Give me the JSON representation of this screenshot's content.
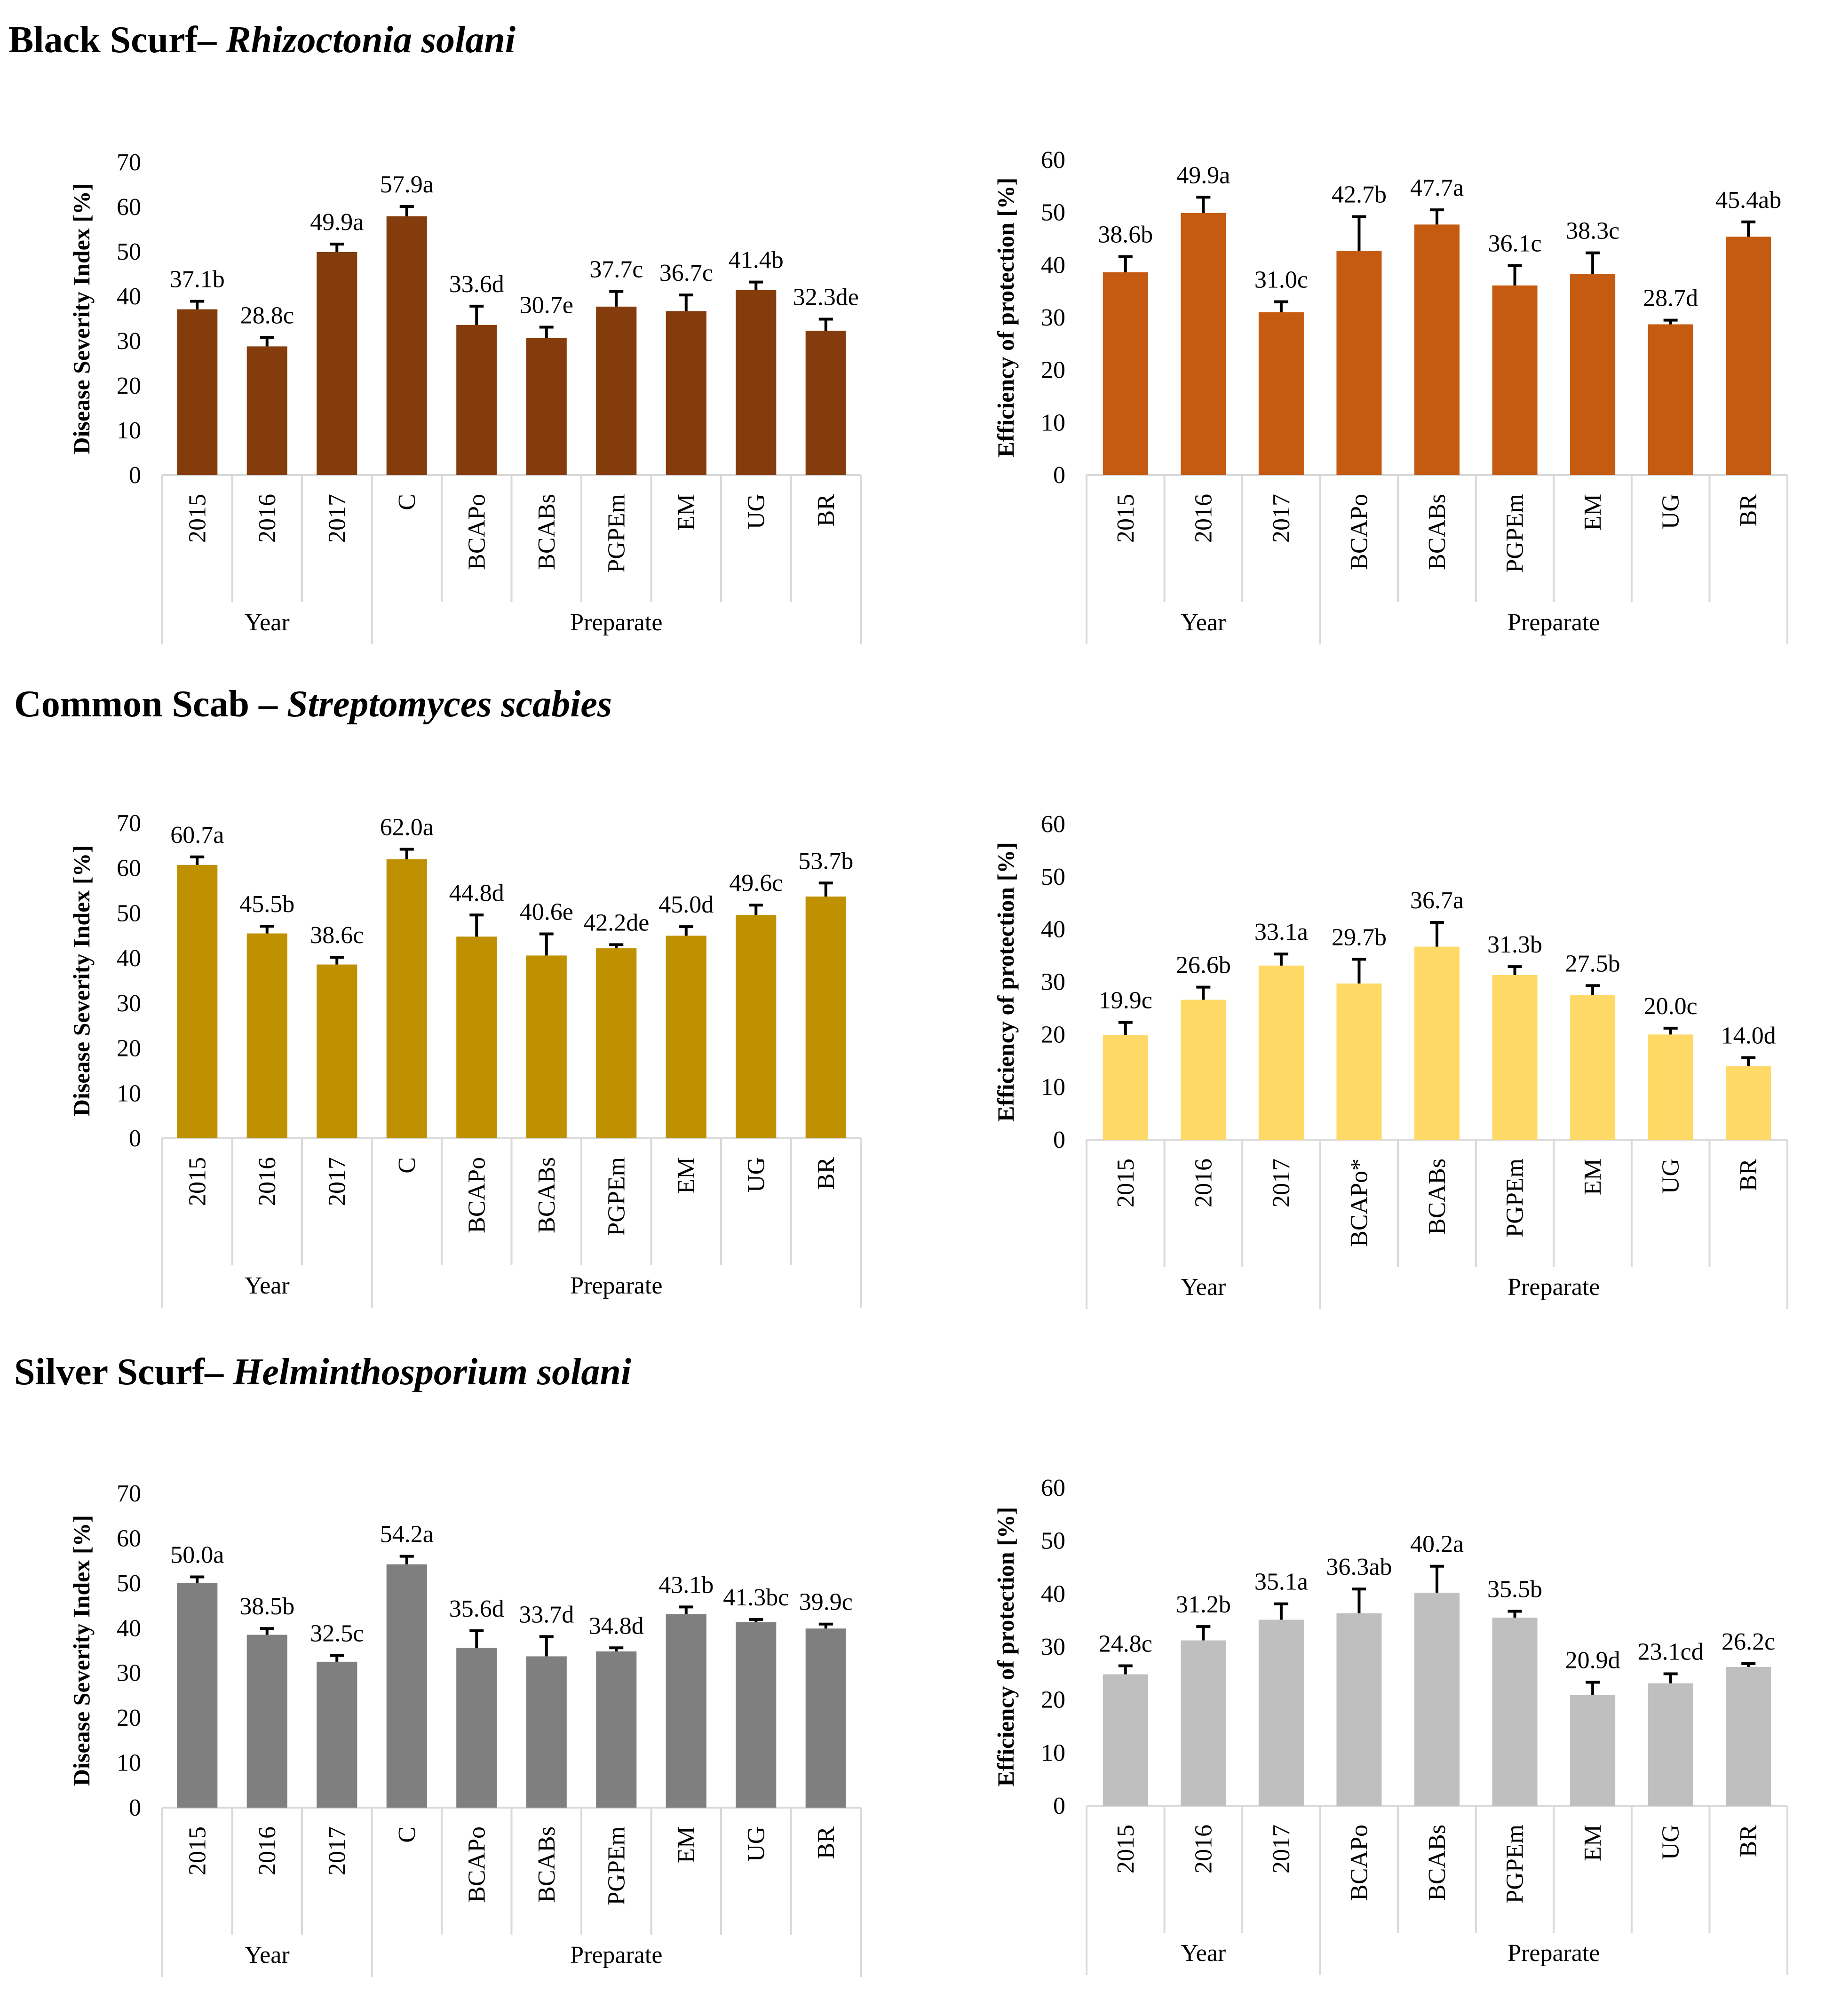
{
  "sections": [
    {
      "title": "Black Scurf–",
      "species": "Rhizoctonia solani"
    },
    {
      "title": "Common Scab –",
      "species": "Streptomyces scabies"
    },
    {
      "title": "Silver Scurf–",
      "species": "Helminthosporium solani"
    }
  ],
  "colors": {
    "bs_dsi": "#843C0C",
    "bs_eff": "#C55A11",
    "cs_dsi": "#BF9000",
    "cs_eff": "#FFD966",
    "ss_dsi": "#7F7F7F",
    "ss_eff": "#BFBFBF",
    "error_bar": "#000000",
    "axis": "#D9D9D9"
  },
  "chart_data": [
    {
      "type": "bar",
      "title": "Black Scurf– Rhizoctonia solani",
      "ylabel": "Disease Severity Index [%]",
      "ylim": [
        0,
        70
      ],
      "yticks": [
        0,
        10,
        20,
        30,
        40,
        50,
        60,
        70
      ],
      "categories": [
        "2015",
        "2016",
        "2017",
        "C",
        "BCAPo",
        "BCABs",
        "PGPEm",
        "EM",
        "UG",
        "BR"
      ],
      "values": [
        37.1,
        28.8,
        49.9,
        57.9,
        33.6,
        30.7,
        37.7,
        36.7,
        41.4,
        32.3
      ],
      "errors": [
        1.8,
        2.0,
        1.8,
        2.2,
        4.2,
        2.4,
        3.4,
        3.6,
        1.8,
        2.6
      ],
      "labels": [
        "37.1b",
        "28.8c",
        "49.9a",
        "57.9a",
        "33.6d",
        "30.7e",
        "37.7c",
        "36.7c",
        "41.4b",
        "32.3de"
      ],
      "groups": [
        {
          "name": "Year",
          "count": 3
        },
        {
          "name": "Preparate",
          "count": 7
        }
      ]
    },
    {
      "type": "bar",
      "title": "Black Scurf– Rhizoctonia solani",
      "ylabel": "Efficiency of protection [%]",
      "ylim": [
        0,
        60
      ],
      "yticks": [
        0,
        10,
        20,
        30,
        40,
        50,
        60
      ],
      "categories": [
        "2015",
        "2016",
        "2017",
        "BCAPo",
        "BCABs",
        "PGPEm",
        "EM",
        "UG",
        "BR"
      ],
      "values": [
        38.6,
        49.9,
        31.0,
        42.7,
        47.7,
        36.1,
        38.3,
        28.7,
        45.4
      ],
      "errors": [
        3.0,
        3.0,
        2.0,
        6.5,
        2.8,
        3.8,
        4.0,
        0.8,
        2.8
      ],
      "labels": [
        "38.6b",
        "49.9a",
        "31.0c",
        "42.7b",
        "47.7a",
        "36.1c",
        "38.3c",
        "28.7d",
        "45.4ab"
      ],
      "groups": [
        {
          "name": "Year",
          "count": 3
        },
        {
          "name": "Preparate",
          "count": 6
        }
      ]
    },
    {
      "type": "bar",
      "title": "Common Scab – Streptomyces scabies",
      "ylabel": "Disease Severity Index [%]",
      "ylim": [
        0,
        70
      ],
      "yticks": [
        0,
        10,
        20,
        30,
        40,
        50,
        60,
        70
      ],
      "categories": [
        "2015",
        "2016",
        "2017",
        "C",
        "BCAPo",
        "BCABs",
        "PGPEm",
        "EM",
        "UG",
        "BR"
      ],
      "values": [
        60.7,
        45.5,
        38.6,
        62.0,
        44.8,
        40.6,
        42.2,
        45.0,
        49.6,
        53.7
      ],
      "errors": [
        1.8,
        1.6,
        1.6,
        2.2,
        4.8,
        4.8,
        0.8,
        2.0,
        2.2,
        3.0
      ],
      "labels": [
        "60.7a",
        "45.5b",
        "38.6c",
        "62.0a",
        "44.8d",
        "40.6e",
        "42.2de",
        "45.0d",
        "49.6c",
        "53.7b"
      ],
      "groups": [
        {
          "name": "Year",
          "count": 3
        },
        {
          "name": "Preparate",
          "count": 7
        }
      ]
    },
    {
      "type": "bar",
      "title": "Common Scab – Streptomyces scabies",
      "ylabel": "Efficiency of protection [%]",
      "ylim": [
        0,
        60
      ],
      "yticks": [
        0,
        10,
        20,
        30,
        40,
        50,
        60
      ],
      "categories": [
        "2015",
        "2016",
        "2017",
        "BCAPo*",
        "BCABs",
        "PGPEm",
        "EM",
        "UG",
        "BR"
      ],
      "values": [
        19.9,
        26.6,
        33.1,
        29.7,
        36.7,
        31.3,
        27.5,
        20.0,
        14.0
      ],
      "errors": [
        2.4,
        2.4,
        2.2,
        4.6,
        4.6,
        1.6,
        1.8,
        1.2,
        1.6
      ],
      "labels": [
        "19.9c",
        "26.6b",
        "33.1a",
        "29.7b",
        "36.7a",
        "31.3b",
        "27.5b",
        "20.0c",
        "14.0d"
      ],
      "groups": [
        {
          "name": "Year",
          "count": 3
        },
        {
          "name": "Preparate",
          "count": 6
        }
      ]
    },
    {
      "type": "bar",
      "title": "Silver Scurf– Helminthosporium solani",
      "ylabel": "Disease Severity Index [%]",
      "ylim": [
        0,
        70
      ],
      "yticks": [
        0,
        10,
        20,
        30,
        40,
        50,
        60,
        70
      ],
      "categories": [
        "2015",
        "2016",
        "2017",
        "C",
        "BCAPo",
        "BCABs",
        "PGPEm",
        "EM",
        "UG",
        "BR"
      ],
      "values": [
        50.0,
        38.5,
        32.5,
        54.2,
        35.6,
        33.7,
        34.8,
        43.1,
        41.3,
        39.9
      ],
      "errors": [
        1.4,
        1.4,
        1.4,
        1.8,
        3.8,
        4.4,
        0.8,
        1.6,
        0.6,
        1.0
      ],
      "labels": [
        "50.0a",
        "38.5b",
        "32.5c",
        "54.2a",
        "35.6d",
        "33.7d",
        "34.8d",
        "43.1b",
        "41.3bc",
        "39.9c"
      ],
      "groups": [
        {
          "name": "Year",
          "count": 3
        },
        {
          "name": "Preparate",
          "count": 7
        }
      ]
    },
    {
      "type": "bar",
      "title": "Silver Scurf– Helminthosporium solani",
      "ylabel": "Efficiency of protection [%]",
      "ylim": [
        0,
        60
      ],
      "yticks": [
        0,
        10,
        20,
        30,
        40,
        50,
        60
      ],
      "categories": [
        "2015",
        "2016",
        "2017",
        "BCAPo",
        "BCABs",
        "PGPEm",
        "EM",
        "UG",
        "BR"
      ],
      "values": [
        24.8,
        31.2,
        35.1,
        36.3,
        40.2,
        35.5,
        20.9,
        23.1,
        26.2
      ],
      "errors": [
        1.6,
        2.6,
        3.0,
        4.6,
        5.0,
        1.2,
        2.4,
        1.8,
        0.6
      ],
      "labels": [
        "24.8c",
        "31.2b",
        "35.1a",
        "36.3ab",
        "40.2a",
        "35.5b",
        "20.9d",
        "23.1cd",
        "26.2c"
      ],
      "groups": [
        {
          "name": "Year",
          "count": 3
        },
        {
          "name": "Preparate",
          "count": 6
        }
      ]
    }
  ]
}
